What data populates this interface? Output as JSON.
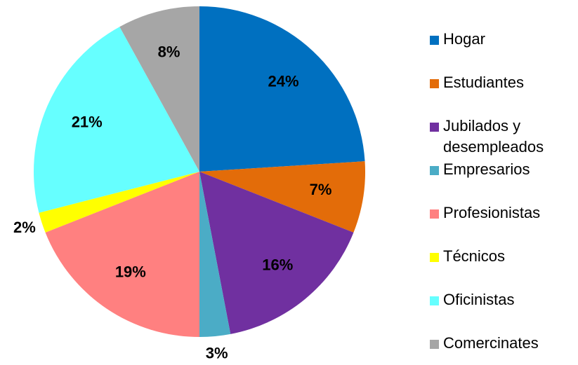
{
  "chart_data": {
    "type": "pie",
    "categories": [
      "Hogar",
      "Estudiantes",
      "Jubilados y desempleados",
      "Empresarios",
      "Profesionistas",
      "Técnicos",
      "Oficinistas",
      "Comercinates"
    ],
    "values": [
      24,
      7,
      16,
      3,
      19,
      2,
      21,
      8
    ],
    "value_labels": [
      "24%",
      "7%",
      "16%",
      "3%",
      "19%",
      "2%",
      "21%",
      "8%"
    ],
    "colors": [
      "#0070c0",
      "#e36c09",
      "#7030a0",
      "#4bacc6",
      "#ff8080",
      "#ffff00",
      "#66ffff",
      "#a6a6a6"
    ],
    "legend": "right"
  }
}
